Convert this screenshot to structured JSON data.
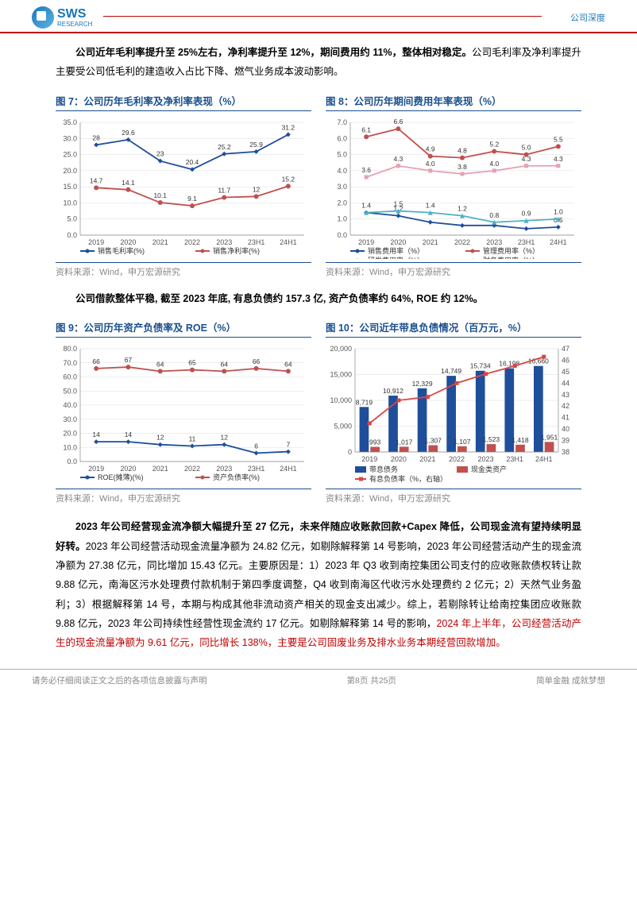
{
  "header": {
    "brand_main": "SWS",
    "brand_sub": "RESEARCH",
    "top_right": "公司深度"
  },
  "p1": {
    "lead_bold": "公司近年毛利率提升至 25%左右，净利率提升至 12%，期间费用约 11%，整体相对稳定。",
    "rest": "公司毛利率及净利率提升主要受公司低毛利的建造收入占比下降、燃气业务成本波动影响。"
  },
  "fig7": {
    "title": "图 7：公司历年毛利率及净利率表现（%）",
    "source": "资料来源：Wind，申万宏源研究",
    "type": "line",
    "categories": [
      "2019",
      "2020",
      "2021",
      "2022",
      "2023",
      "23H1",
      "24H1"
    ],
    "series": [
      {
        "name": "销售毛利率(%)",
        "color": "#1f4e9b",
        "marker": "diamond",
        "values": [
          28.0,
          29.6,
          23.0,
          20.4,
          25.2,
          25.9,
          31.2
        ]
      },
      {
        "name": "销售净利率(%)",
        "color": "#c0504d",
        "marker": "circle",
        "values": [
          14.7,
          14.1,
          10.1,
          9.1,
          11.7,
          12.0,
          15.2
        ]
      }
    ],
    "ylim": [
      0,
      35
    ],
    "ytick_step": 5,
    "label_fontsize": 9
  },
  "fig8": {
    "title": "图 8：公司历年期间费用年率表现（%）",
    "source": "资料来源：Wind，申万宏源研究",
    "type": "line",
    "categories": [
      "2019",
      "2020",
      "2021",
      "2022",
      "2023",
      "23H1",
      "24H1"
    ],
    "series": [
      {
        "name": "销售费用率（%）",
        "color": "#1f4e9b",
        "marker": "diamond",
        "values": [
          1.4,
          1.2,
          0.8,
          0.6,
          0.6,
          0.4,
          0.5
        ],
        "labels": [
          "1.4",
          "1.2",
          "",
          "",
          "",
          "",
          "0.5"
        ]
      },
      {
        "name": "管理费用率（%）",
        "color": "#c0504d",
        "marker": "circle",
        "values": [
          6.1,
          6.6,
          4.9,
          4.8,
          5.2,
          5.0,
          5.5
        ],
        "labels": [
          "6.1",
          "6.6",
          "4.9",
          "4.8",
          "5.2",
          "5.0",
          "5.5"
        ]
      },
      {
        "name": "研发费用率（%）",
        "color": "#4fb0c6",
        "marker": "triangle",
        "values": [
          1.4,
          1.5,
          1.4,
          1.2,
          0.8,
          0.9,
          1.0
        ],
        "labels": [
          "",
          "1.5",
          "1.4",
          "1.2",
          "0.8",
          "0.9",
          "1.0"
        ]
      },
      {
        "name": "财务费用率（%）",
        "color": "#e8a0b0",
        "marker": "square",
        "values": [
          3.6,
          4.3,
          4.0,
          3.8,
          4.0,
          4.3,
          4.3
        ],
        "labels": [
          "3.6",
          "4.3",
          "4.0",
          "3.8",
          "4.0",
          "4.3",
          "4.3"
        ]
      }
    ],
    "ylim": [
      0,
      7
    ],
    "ytick_step": 1,
    "label_fontsize": 9
  },
  "p2": {
    "lead_bold": "公司借款整体平稳, 截至 2023 年底, 有息负债约 157.3 亿, 资产负债率约 64%, ROE 约 12%。"
  },
  "fig9": {
    "title": "图 9：公司历年资产负债率及 ROE（%）",
    "source": "资料来源：Wind，申万宏源研究",
    "type": "line",
    "categories": [
      "2019",
      "2020",
      "2021",
      "2022",
      "2023",
      "23H1",
      "24H1"
    ],
    "series": [
      {
        "name": "ROE(摊薄)(%)",
        "color": "#1f4e9b",
        "marker": "diamond",
        "values": [
          14,
          14,
          12,
          11,
          12,
          6,
          7
        ]
      },
      {
        "name": "资产负债率(%)",
        "color": "#c0504d",
        "marker": "circle",
        "values": [
          66,
          67,
          64,
          65,
          64,
          66,
          64
        ]
      }
    ],
    "ylim": [
      0,
      80
    ],
    "ytick_step": 10,
    "label_fontsize": 9
  },
  "fig10": {
    "title": "图 10：公司近年带息负债情况（百万元，%）",
    "source": "资料来源：Wind，申万宏源研究",
    "type": "bar-line",
    "categories": [
      "2019",
      "2020",
      "2021",
      "2022",
      "2023",
      "23H1",
      "24H1"
    ],
    "bars": [
      {
        "name": "带息债务",
        "color": "#1f4e9b",
        "values": [
          8719,
          10912,
          12329,
          14749,
          15734,
          16198,
          16660
        ]
      },
      {
        "name": "现金类资产",
        "color": "#c0504d",
        "values": [
          993,
          1017,
          1307,
          1107,
          1523,
          1418,
          1951
        ]
      }
    ],
    "line": {
      "name": "有息负债率（%，右轴）",
      "color": "#d94646",
      "values": [
        40.5,
        42.5,
        42.8,
        44.0,
        44.8,
        45.5,
        46.3
      ]
    },
    "ylim_left": [
      0,
      20000
    ],
    "ytick_left": 5000,
    "ylim_right": [
      38,
      47
    ],
    "ytick_right": 1
  },
  "p3": {
    "lead_bold": "2023 年公司经营现金流净额大幅提升至 27 亿元，未来伴随应收账款回款+Capex 降低，公司现金流有望持续明显好转。",
    "body": "2023 年公司经营活动现金流量净额为 24.82 亿元，如剔除解释第 14 号影响，2023 年公司经营活动产生的现金流净额为 27.38 亿元，同比增加 15.43 亿元。主要原因是：1）2023 年 Q3 收到南控集团公司支付的应收账款债权转让款 9.88 亿元，南海区污水处理费付款机制于第四季度调整，Q4 收到南海区代收污水处理费约 2 亿元；2）天然气业务盈利；3）根据解释第 14 号，本期与构成其他非流动资产相关的现金支出减少。综上，若剔除转让给南控集团应收账款 9.88 亿元，2023 年公司持续性经营性现金流约 17 亿元。如剔除解释第 14 号的影响，",
    "red": "2024 年上半年，公司经营活动产生的现金流量净额为 9.61 亿元，同比增长 138%，主要是公司固废业务及排水业务本期经营回款增加。"
  },
  "footer": {
    "left": "请务必仔细阅读正文之后的各项信息披露与声明",
    "mid": "第8页 共25页",
    "right": "简单金融 成就梦想"
  },
  "colors": {
    "brand_blue": "#1a4f8e",
    "brand_red": "#c00000",
    "grid": "#dddddd",
    "axis": "#888888"
  }
}
